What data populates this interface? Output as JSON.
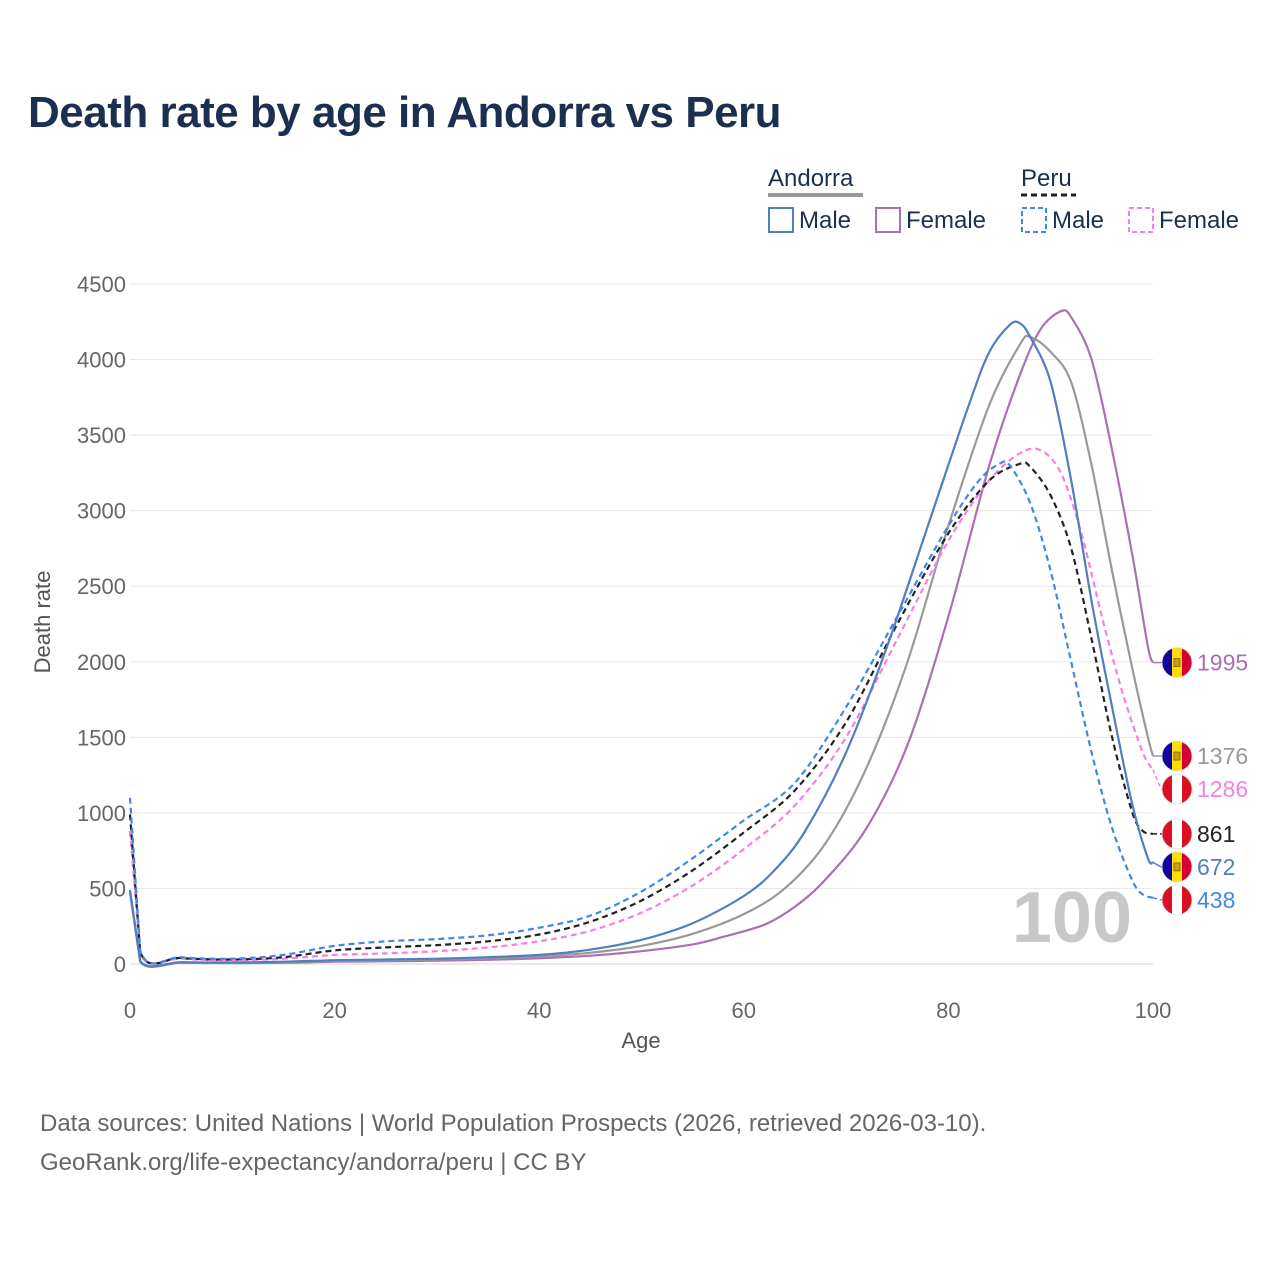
{
  "title": "Death rate by age in Andorra vs Peru",
  "legend": {
    "groups": [
      {
        "name": "Andorra",
        "color": "#999999",
        "dash": false
      },
      {
        "name": "Peru",
        "color": "#222222",
        "dash": true
      }
    ],
    "items": [
      {
        "label": "Male",
        "color": "#4f7fbf",
        "dash": false
      },
      {
        "label": "Female",
        "color": "#aa70b0",
        "dash": false
      },
      {
        "label": "Male",
        "color": "#3f88e8",
        "dash": true
      },
      {
        "label": "Female",
        "color": "#f57ee8",
        "dash": true
      }
    ]
  },
  "watermark": "100",
  "source": {
    "line1": "Data sources: United Nations | World Population Prospects (2026, retrieved 2026-03-10).",
    "line2": "GeoRank.org/life-expectancy/andorra/peru | CC BY"
  },
  "chart_data": {
    "type": "line",
    "title": "Death rate by age in Andorra vs Peru",
    "xlabel": "Age",
    "ylabel": "Death rate",
    "xlim": [
      0,
      100
    ],
    "ylim": [
      0,
      4500
    ],
    "xticks": [
      0,
      20,
      40,
      60,
      80,
      100
    ],
    "yticks": [
      0,
      500,
      1000,
      1500,
      2000,
      2500,
      3000,
      3500,
      4000,
      4500
    ],
    "grid": true,
    "series": [
      {
        "name": "Andorra Female",
        "color": "#aa70b0",
        "dash": false,
        "end_value": 1995,
        "end_label": "1995",
        "flag": "andorra",
        "points": [
          [
            0,
            470
          ],
          [
            1,
            15
          ],
          [
            5,
            8
          ],
          [
            10,
            6
          ],
          [
            15,
            8
          ],
          [
            20,
            15
          ],
          [
            25,
            18
          ],
          [
            30,
            22
          ],
          [
            35,
            28
          ],
          [
            40,
            38
          ],
          [
            45,
            55
          ],
          [
            50,
            85
          ],
          [
            55,
            130
          ],
          [
            58,
            180
          ],
          [
            62,
            260
          ],
          [
            65,
            380
          ],
          [
            68,
            560
          ],
          [
            72,
            900
          ],
          [
            76,
            1450
          ],
          [
            80,
            2300
          ],
          [
            84,
            3300
          ],
          [
            87,
            3900
          ],
          [
            89,
            4200
          ],
          [
            91,
            4320
          ],
          [
            92,
            4280
          ],
          [
            94,
            4000
          ],
          [
            96,
            3400
          ],
          [
            98,
            2700
          ],
          [
            99.5,
            2100
          ],
          [
            100,
            1995
          ]
        ]
      },
      {
        "name": "Andorra Total",
        "color": "#999999",
        "dash": false,
        "end_value": 1376,
        "end_label": "1376",
        "flag": "andorra",
        "points": [
          [
            0,
            480
          ],
          [
            1,
            18
          ],
          [
            5,
            10
          ],
          [
            10,
            8
          ],
          [
            15,
            12
          ],
          [
            20,
            20
          ],
          [
            25,
            24
          ],
          [
            30,
            30
          ],
          [
            35,
            38
          ],
          [
            40,
            50
          ],
          [
            45,
            75
          ],
          [
            50,
            120
          ],
          [
            55,
            200
          ],
          [
            60,
            330
          ],
          [
            64,
            500
          ],
          [
            68,
            800
          ],
          [
            72,
            1300
          ],
          [
            76,
            2000
          ],
          [
            80,
            2900
          ],
          [
            84,
            3700
          ],
          [
            87,
            4100
          ],
          [
            88,
            4150
          ],
          [
            90,
            4050
          ],
          [
            92,
            3850
          ],
          [
            94,
            3300
          ],
          [
            96,
            2600
          ],
          [
            98,
            1950
          ],
          [
            99.5,
            1500
          ],
          [
            100,
            1376
          ]
        ]
      },
      {
        "name": "Peru Female",
        "color": "#f57ee8",
        "dash": true,
        "end_value": 1286,
        "end_label": "1286",
        "flag": "peru",
        "points": [
          [
            0,
            880
          ],
          [
            1,
            70
          ],
          [
            5,
            35
          ],
          [
            10,
            25
          ],
          [
            15,
            35
          ],
          [
            20,
            60
          ],
          [
            25,
            70
          ],
          [
            30,
            85
          ],
          [
            35,
            110
          ],
          [
            40,
            150
          ],
          [
            45,
            220
          ],
          [
            50,
            340
          ],
          [
            55,
            520
          ],
          [
            60,
            760
          ],
          [
            65,
            1050
          ],
          [
            70,
            1500
          ],
          [
            75,
            2150
          ],
          [
            80,
            2800
          ],
          [
            84,
            3200
          ],
          [
            87,
            3380
          ],
          [
            89,
            3400
          ],
          [
            91,
            3250
          ],
          [
            93,
            2850
          ],
          [
            95,
            2300
          ],
          [
            97,
            1800
          ],
          [
            99,
            1400
          ],
          [
            100,
            1286
          ]
        ]
      },
      {
        "name": "Peru Total",
        "color": "#222222",
        "dash": true,
        "end_value": 861,
        "end_label": "861",
        "flag": "peru",
        "points": [
          [
            0,
            990
          ],
          [
            1,
            80
          ],
          [
            5,
            40
          ],
          [
            10,
            30
          ],
          [
            15,
            45
          ],
          [
            20,
            90
          ],
          [
            25,
            110
          ],
          [
            30,
            125
          ],
          [
            35,
            150
          ],
          [
            40,
            195
          ],
          [
            45,
            280
          ],
          [
            50,
            420
          ],
          [
            55,
            620
          ],
          [
            60,
            870
          ],
          [
            65,
            1150
          ],
          [
            70,
            1600
          ],
          [
            75,
            2250
          ],
          [
            80,
            2850
          ],
          [
            84,
            3200
          ],
          [
            87,
            3310
          ],
          [
            88,
            3290
          ],
          [
            90,
            3100
          ],
          [
            92,
            2750
          ],
          [
            94,
            2150
          ],
          [
            96,
            1500
          ],
          [
            98,
            1000
          ],
          [
            99,
            880
          ],
          [
            100,
            861
          ]
        ]
      },
      {
        "name": "Andorra Male",
        "color": "#4f7fbf",
        "dash": false,
        "end_value": 672,
        "end_label": "672",
        "flag": "andorra",
        "points": [
          [
            0,
            490
          ],
          [
            1,
            20
          ],
          [
            5,
            12
          ],
          [
            10,
            10
          ],
          [
            15,
            15
          ],
          [
            20,
            25
          ],
          [
            25,
            30
          ],
          [
            30,
            35
          ],
          [
            35,
            45
          ],
          [
            40,
            60
          ],
          [
            45,
            95
          ],
          [
            50,
            160
          ],
          [
            55,
            270
          ],
          [
            60,
            450
          ],
          [
            63,
            620
          ],
          [
            66,
            880
          ],
          [
            70,
            1400
          ],
          [
            74,
            2100
          ],
          [
            78,
            2900
          ],
          [
            82,
            3700
          ],
          [
            84,
            4050
          ],
          [
            86,
            4230
          ],
          [
            87,
            4240
          ],
          [
            88,
            4150
          ],
          [
            90,
            3850
          ],
          [
            92,
            3200
          ],
          [
            94,
            2400
          ],
          [
            96,
            1700
          ],
          [
            98,
            1050
          ],
          [
            99.5,
            700
          ],
          [
            100,
            672
          ]
        ]
      },
      {
        "name": "Peru Male",
        "color": "#3f88e8",
        "dash": true,
        "end_value": 438,
        "end_label": "438",
        "flag": "peru",
        "points": [
          [
            0,
            1100
          ],
          [
            1,
            90
          ],
          [
            5,
            45
          ],
          [
            10,
            35
          ],
          [
            15,
            60
          ],
          [
            20,
            120
          ],
          [
            25,
            150
          ],
          [
            30,
            165
          ],
          [
            35,
            190
          ],
          [
            40,
            240
          ],
          [
            45,
            320
          ],
          [
            50,
            480
          ],
          [
            55,
            700
          ],
          [
            60,
            950
          ],
          [
            65,
            1200
          ],
          [
            70,
            1700
          ],
          [
            75,
            2300
          ],
          [
            80,
            2900
          ],
          [
            83,
            3200
          ],
          [
            85,
            3310
          ],
          [
            86,
            3300
          ],
          [
            88,
            3050
          ],
          [
            90,
            2600
          ],
          [
            92,
            2000
          ],
          [
            94,
            1400
          ],
          [
            96,
            900
          ],
          [
            98,
            550
          ],
          [
            99,
            460
          ],
          [
            100,
            438
          ]
        ]
      }
    ]
  }
}
